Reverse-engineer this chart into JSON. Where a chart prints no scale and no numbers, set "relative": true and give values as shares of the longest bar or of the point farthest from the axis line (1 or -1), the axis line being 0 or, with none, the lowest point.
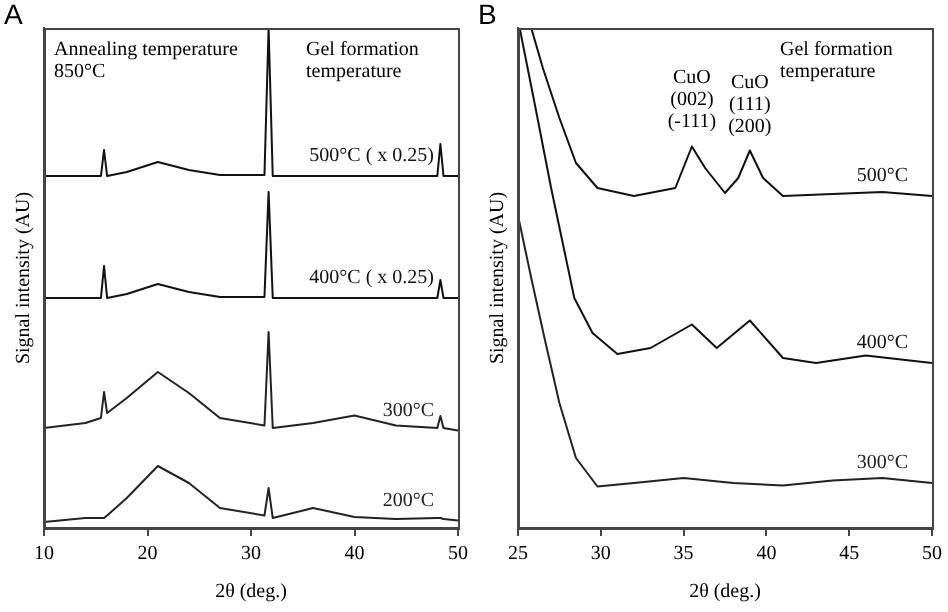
{
  "chart_data": [
    {
      "type": "line",
      "title": "A",
      "xlabel": "2θ (deg.)",
      "ylabel": "Signal intensity (AU)",
      "relative": true,
      "xlim": [
        10,
        50
      ],
      "xticks": [
        10,
        20,
        30,
        40,
        50
      ],
      "grid": false,
      "legend": false,
      "marker": "none",
      "line_style": "solid",
      "x": [
        10,
        14,
        15.5,
        15.8,
        16.1,
        18,
        21,
        24,
        27,
        31.3,
        31.7,
        32.1,
        36,
        40,
        44,
        48,
        48.3,
        48.6,
        50
      ],
      "annotations": [
        "Annealing temperature 850°C",
        "Gel formation temperature"
      ],
      "series": [
        {
          "name": "500°C ( x 0.25)",
          "color": "#111111",
          "values": [
            0.704,
            0.704,
            0.704,
            0.756,
            0.704,
            0.712,
            0.732,
            0.716,
            0.706,
            0.706,
            1.0,
            0.704,
            0.704,
            0.704,
            0.704,
            0.704,
            0.768,
            0.704,
            0.704
          ]
        },
        {
          "name": "400°C ( x 0.25)",
          "color": "#111111",
          "values": [
            0.46,
            0.46,
            0.46,
            0.524,
            0.46,
            0.468,
            0.488,
            0.472,
            0.462,
            0.462,
            0.672,
            0.46,
            0.46,
            0.46,
            0.46,
            0.46,
            0.496,
            0.46,
            0.46
          ]
        },
        {
          "name": "300°C",
          "color": "#222222",
          "values": [
            0.2,
            0.21,
            0.22,
            0.272,
            0.23,
            0.26,
            0.312,
            0.27,
            0.22,
            0.205,
            0.392,
            0.2,
            0.21,
            0.225,
            0.205,
            0.2,
            0.224,
            0.2,
            0.195
          ]
        },
        {
          "name": "200°C",
          "color": "#222222",
          "values": [
            0.012,
            0.02,
            0.02,
            0.02,
            0.025,
            0.06,
            0.124,
            0.09,
            0.04,
            0.025,
            0.08,
            0.02,
            0.04,
            0.022,
            0.018,
            0.02,
            0.02,
            0.018,
            0.015
          ]
        }
      ]
    },
    {
      "type": "line",
      "title": "B",
      "xlabel": "2θ (deg.)",
      "ylabel": "Signal intensity (AU)",
      "relative": true,
      "xlim": [
        25,
        50
      ],
      "xticks": [
        25,
        30,
        35,
        40,
        45,
        50
      ],
      "grid": false,
      "legend": false,
      "marker": "none",
      "line_style": "solid",
      "annotations": [
        "Gel formation temperature",
        {
          "text": "CuO (002) (-111)",
          "x": 35.5,
          "y": 0.78
        },
        {
          "text": "CuO (111) (200)",
          "x": 39,
          "y": 0.77
        }
      ],
      "series": [
        {
          "name": "500°C",
          "color": "#111111",
          "x": [
            25.8,
            26.5,
            27.5,
            28.5,
            29.8,
            32,
            34.5,
            35.5,
            36.3,
            37.5,
            38.3,
            39,
            39.8,
            41,
            44,
            47,
            50
          ],
          "values": [
            1.0,
            0.92,
            0.82,
            0.73,
            0.68,
            0.664,
            0.68,
            0.763,
            0.72,
            0.67,
            0.7,
            0.755,
            0.7,
            0.664,
            0.668,
            0.672,
            0.664
          ]
        },
        {
          "name": "400°C",
          "color": "#111111",
          "x": [
            25.1,
            26,
            27,
            28.4,
            29.5,
            31,
            33,
            35.5,
            37,
            39,
            41,
            43,
            46,
            50
          ],
          "values": [
            1.0,
            0.85,
            0.68,
            0.46,
            0.39,
            0.348,
            0.36,
            0.407,
            0.36,
            0.415,
            0.34,
            0.33,
            0.345,
            0.33
          ]
        },
        {
          "name": "300°C",
          "color": "#222222",
          "x": [
            25,
            25.8,
            26.6,
            27.5,
            28.5,
            29.8,
            32,
            35,
            38,
            41,
            44,
            47,
            50
          ],
          "values": [
            0.625,
            0.5,
            0.38,
            0.25,
            0.14,
            0.083,
            0.09,
            0.1,
            0.09,
            0.085,
            0.095,
            0.1,
            0.09
          ]
        }
      ]
    }
  ]
}
